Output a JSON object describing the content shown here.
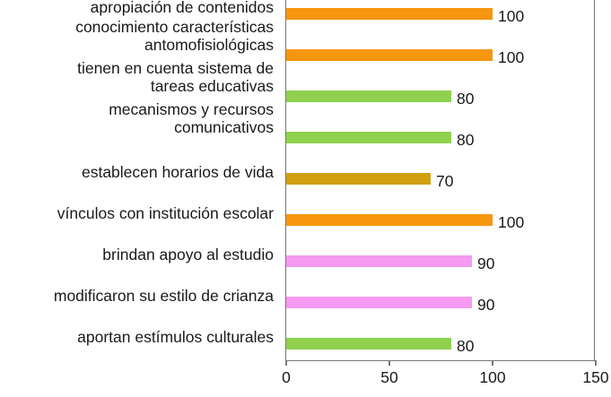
{
  "chart_data": {
    "type": "bar",
    "orientation": "horizontal",
    "title": "",
    "xlabel": "",
    "ylabel": "",
    "xlim": [
      0,
      150
    ],
    "xticks": [
      0,
      50,
      100,
      150
    ],
    "grid": false,
    "legend": null,
    "categories": [
      "apropiación de contenidos",
      "conocimiento características antomofisiológicas",
      "tienen en cuenta sistema de tareas educativas",
      "mecanismos y recursos comunicativos",
      "establecen horarios de vida",
      "vínculos con institución escolar",
      "brindan apoyo al estudio",
      "modificaron su estilo de crianza",
      "aportan estímulos culturales"
    ],
    "category_lines": [
      [
        "apropiación de contenidos"
      ],
      [
        "conocimiento características",
        "antomofisiológicas"
      ],
      [
        "tienen en cuenta sistema de",
        "tareas educativas"
      ],
      [
        "mecanismos y recursos",
        "comunicativos"
      ],
      [
        "establecen horarios de vida"
      ],
      [
        "vínculos con institución escolar"
      ],
      [
        "brindan apoyo al estudio"
      ],
      [
        "modificaron su estilo de crianza"
      ],
      [
        "aportan estímulos culturales"
      ]
    ],
    "values": [
      100,
      100,
      80,
      80,
      70,
      100,
      90,
      90,
      80
    ],
    "value_labels": [
      "100",
      "100",
      "80",
      "80",
      "70",
      "100",
      "90",
      "90",
      "80"
    ],
    "bar_colors": [
      "#f7960f",
      "#f7960f",
      "#8fd14f",
      "#8fd14f",
      "#d0a012",
      "#f7960f",
      "#f59af0",
      "#f59af0",
      "#8fd14f"
    ]
  },
  "axis": {
    "tick_labels": [
      "0",
      "50",
      "100",
      "150"
    ]
  }
}
